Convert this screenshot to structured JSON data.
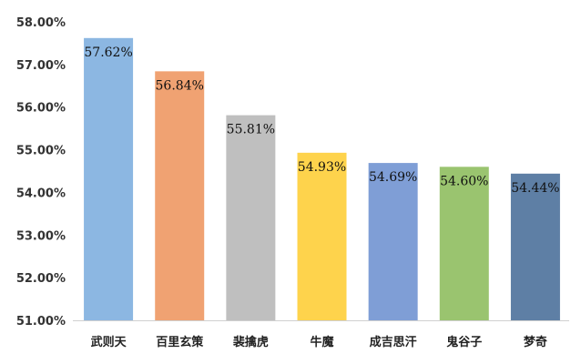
{
  "chart_data": {
    "type": "bar",
    "categories": [
      "武则天",
      "百里玄策",
      "裴擒虎",
      "牛魔",
      "成吉思汗",
      "鬼谷子",
      "梦奇"
    ],
    "values": [
      57.62,
      56.84,
      55.81,
      54.93,
      54.69,
      54.6,
      54.44
    ],
    "data_labels": [
      "57.62%",
      "56.84%",
      "55.81%",
      "54.93%",
      "54.69%",
      "54.60%",
      "54.44%"
    ],
    "colors": [
      "#8cb7e2",
      "#f0a272",
      "#bfbfbf",
      "#fed34c",
      "#7f9ed6",
      "#9ac46f",
      "#5e7fa5"
    ],
    "ylim": [
      51,
      58
    ],
    "yticks": [
      51,
      52,
      53,
      54,
      55,
      56,
      57,
      58
    ],
    "ytick_labels": [
      "51.00%",
      "52.00%",
      "53.00%",
      "54.00%",
      "55.00%",
      "56.00%",
      "57.00%",
      "58.00%"
    ],
    "title": "",
    "xlabel": "",
    "ylabel": "",
    "grid": false,
    "legend": "none"
  }
}
